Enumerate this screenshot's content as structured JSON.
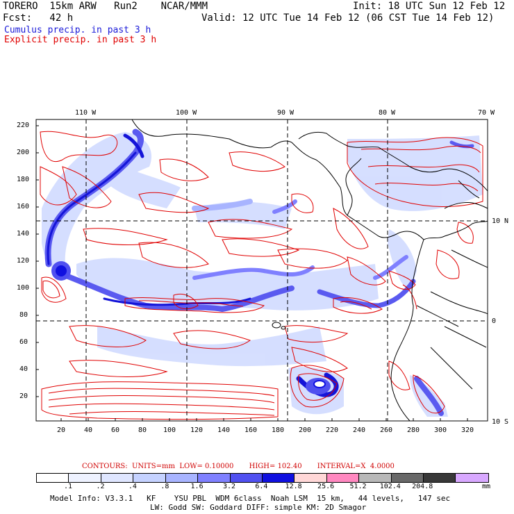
{
  "header": {
    "left_line1": "TORERO  15km ARW   Run2    NCAR/MMM",
    "left_line2": "Fcst:   42 h",
    "right_line1": "Init: 18 UTC Sun 12 Feb 12",
    "right_line2": "Valid: 12 UTC Tue 14 Feb 12 (06 CST Tue 14 Feb 12)"
  },
  "legend": {
    "cumulus": "Cumulus precip. in past 3 h",
    "explicit": "Explicit precip. in past 3 h",
    "cumulus_color": "#1a1ad8",
    "explicit_color": "#e00000"
  },
  "map": {
    "top_longitudes": [
      "110 W",
      "100 W",
      "90 W",
      "80 W",
      "70 W"
    ],
    "right_latitudes": [
      "10 N",
      "0",
      "10 S"
    ],
    "left_grid_ticks": [
      "220",
      "200",
      "180",
      "160",
      "140",
      "120",
      "100",
      "80",
      "60",
      "40",
      "20"
    ],
    "bottom_grid_ticks": [
      "20",
      "40",
      "60",
      "80",
      "100",
      "120",
      "140",
      "160",
      "180",
      "200",
      "220",
      "240",
      "260",
      "280",
      "300",
      "320"
    ]
  },
  "contours": {
    "text": "CONTOURS:  UNITS=mm  LOW= 0.10000       HIGH= 102.40       INTERVAL=X  4.0000"
  },
  "colorbar": {
    "colors": [
      "#ffffff",
      "#eef2ff",
      "#dfe6ff",
      "#c5d2ff",
      "#a8b4ff",
      "#7f80ff",
      "#5050f0",
      "#1010e0",
      "#ffd7d7",
      "#ff88c0",
      "#b8b8b8",
      "#686868",
      "#383838",
      "#d8a8ff"
    ],
    "labels": [
      ".1",
      ".2",
      ".4",
      ".8",
      "1.6",
      "3.2",
      "6.4",
      "12.8",
      "25.6",
      "51.2",
      "102.4",
      "204.8"
    ],
    "unit": "mm"
  },
  "footer": {
    "line1": "Model Info: V3.3.1   KF    YSU PBL  WDM 6class  Noah LSM  15 km,   44 levels,   147 sec",
    "line2": "LW: Godd SW: Goddard DIFF: simple KM: 2D Smagor"
  }
}
